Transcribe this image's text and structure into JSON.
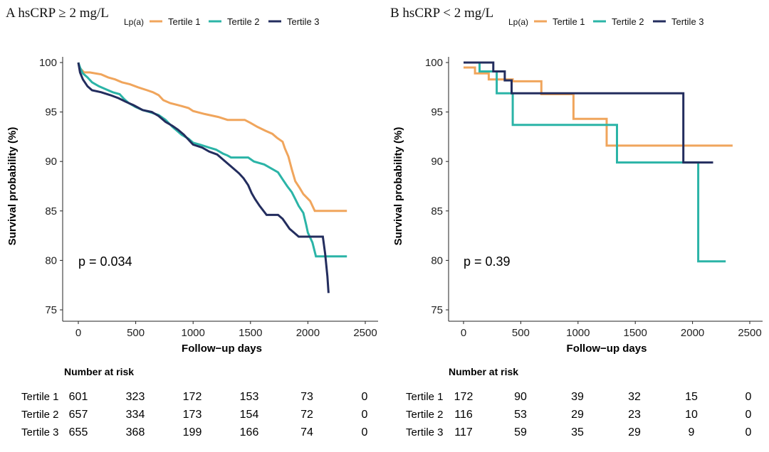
{
  "colors": {
    "tertile1": "#F0A55C",
    "tertile2": "#2BB4A7",
    "tertile3": "#232D5E",
    "axis": "#222222"
  },
  "legend": {
    "title": "Lp(a)",
    "items": [
      "Tertile 1",
      "Tertile 2",
      "Tertile 3"
    ]
  },
  "chart_data": [
    {
      "type": "line",
      "panel": "A",
      "title": "A  hsCRP ≥ 2 mg/L",
      "xlabel": "Follow−up days",
      "ylabel": "Survival probability (%)",
      "xlim": [
        0,
        2500
      ],
      "ylim": [
        75,
        100
      ],
      "xticks": [
        0,
        500,
        1000,
        1500,
        2000,
        2500
      ],
      "yticks": [
        75,
        80,
        85,
        90,
        95,
        100
      ],
      "annotation": "p = 0.034",
      "series": [
        {
          "name": "Tertile 1",
          "points": [
            [
              0,
              100
            ],
            [
              10,
              99.5
            ],
            [
              50,
              99.0
            ],
            [
              100,
              99.0
            ],
            [
              200,
              98.8
            ],
            [
              260,
              98.5
            ],
            [
              320,
              98.3
            ],
            [
              380,
              98.0
            ],
            [
              450,
              97.8
            ],
            [
              520,
              97.5
            ],
            [
              600,
              97.2
            ],
            [
              650,
              97.0
            ],
            [
              700,
              96.7
            ],
            [
              740,
              96.2
            ],
            [
              800,
              95.9
            ],
            [
              870,
              95.7
            ],
            [
              960,
              95.4
            ],
            [
              1000,
              95.1
            ],
            [
              1100,
              94.8
            ],
            [
              1220,
              94.5
            ],
            [
              1300,
              94.2
            ],
            [
              1450,
              94.2
            ],
            [
              1500,
              93.9
            ],
            [
              1560,
              93.5
            ],
            [
              1630,
              93.1
            ],
            [
              1690,
              92.8
            ],
            [
              1730,
              92.4
            ],
            [
              1780,
              92.0
            ],
            [
              1800,
              91.3
            ],
            [
              1830,
              90.5
            ],
            [
              1860,
              89.2
            ],
            [
              1890,
              88.0
            ],
            [
              1930,
              87.3
            ],
            [
              1960,
              86.7
            ],
            [
              2020,
              86.0
            ],
            [
              2060,
              85.0
            ],
            [
              2340,
              85.0
            ]
          ]
        },
        {
          "name": "Tertile 2",
          "points": [
            [
              0,
              100
            ],
            [
              15,
              99.5
            ],
            [
              40,
              98.9
            ],
            [
              80,
              98.5
            ],
            [
              120,
              98.0
            ],
            [
              180,
              97.6
            ],
            [
              240,
              97.3
            ],
            [
              300,
              97.0
            ],
            [
              360,
              96.8
            ],
            [
              400,
              96.3
            ],
            [
              440,
              95.9
            ],
            [
              500,
              95.5
            ],
            [
              560,
              95.2
            ],
            [
              620,
              95.0
            ],
            [
              700,
              94.7
            ],
            [
              760,
              94.2
            ],
            [
              820,
              93.5
            ],
            [
              860,
              93.1
            ],
            [
              900,
              92.7
            ],
            [
              960,
              92.3
            ],
            [
              1000,
              91.9
            ],
            [
              1060,
              91.7
            ],
            [
              1140,
              91.4
            ],
            [
              1200,
              91.2
            ],
            [
              1260,
              90.8
            ],
            [
              1300,
              90.6
            ],
            [
              1330,
              90.4
            ],
            [
              1480,
              90.4
            ],
            [
              1530,
              90.0
            ],
            [
              1620,
              89.7
            ],
            [
              1680,
              89.3
            ],
            [
              1740,
              88.9
            ],
            [
              1780,
              88.2
            ],
            [
              1820,
              87.5
            ],
            [
              1860,
              86.9
            ],
            [
              1890,
              86.2
            ],
            [
              1920,
              85.5
            ],
            [
              1960,
              84.8
            ],
            [
              1985,
              83.6
            ],
            [
              2000,
              82.8
            ],
            [
              2040,
              81.8
            ],
            [
              2070,
              80.4
            ],
            [
              2340,
              80.4
            ]
          ]
        },
        {
          "name": "Tertile 3",
          "points": [
            [
              0,
              100
            ],
            [
              15,
              99.0
            ],
            [
              40,
              98.3
            ],
            [
              80,
              97.6
            ],
            [
              120,
              97.2
            ],
            [
              200,
              97.0
            ],
            [
              280,
              96.7
            ],
            [
              350,
              96.4
            ],
            [
              420,
              96.0
            ],
            [
              480,
              95.7
            ],
            [
              560,
              95.2
            ],
            [
              640,
              95.0
            ],
            [
              700,
              94.6
            ],
            [
              760,
              94.0
            ],
            [
              820,
              93.6
            ],
            [
              870,
              93.2
            ],
            [
              920,
              92.7
            ],
            [
              960,
              92.2
            ],
            [
              1000,
              91.7
            ],
            [
              1080,
              91.4
            ],
            [
              1140,
              91.0
            ],
            [
              1210,
              90.7
            ],
            [
              1250,
              90.3
            ],
            [
              1300,
              89.8
            ],
            [
              1350,
              89.3
            ],
            [
              1400,
              88.8
            ],
            [
              1440,
              88.3
            ],
            [
              1480,
              87.6
            ],
            [
              1510,
              86.8
            ],
            [
              1540,
              86.2
            ],
            [
              1580,
              85.5
            ],
            [
              1640,
              84.6
            ],
            [
              1740,
              84.6
            ],
            [
              1780,
              84.2
            ],
            [
              1810,
              83.7
            ],
            [
              1840,
              83.2
            ],
            [
              1870,
              82.9
            ],
            [
              1920,
              82.4
            ],
            [
              2130,
              82.4
            ],
            [
              2150,
              80.7
            ],
            [
              2170,
              78.4
            ],
            [
              2180,
              76.7
            ]
          ]
        }
      ]
    },
    {
      "type": "line",
      "panel": "B",
      "title": "B  hsCRP < 2 mg/L",
      "xlabel": "Follow−up days",
      "ylabel": "Survival probability (%)",
      "xlim": [
        0,
        2500
      ],
      "ylim": [
        75,
        100
      ],
      "xticks": [
        0,
        500,
        1000,
        1500,
        2000,
        2500
      ],
      "yticks": [
        75,
        80,
        85,
        90,
        95,
        100
      ],
      "annotation": "p = 0.39",
      "series": [
        {
          "name": "Tertile 1",
          "points": [
            [
              0,
              99.5
            ],
            [
              100,
              99.5
            ],
            [
              100,
              98.9
            ],
            [
              220,
              98.9
            ],
            [
              220,
              98.3
            ],
            [
              430,
              98.3
            ],
            [
              430,
              98.1
            ],
            [
              680,
              98.1
            ],
            [
              680,
              96.8
            ],
            [
              960,
              96.8
            ],
            [
              960,
              94.3
            ],
            [
              1250,
              94.3
            ],
            [
              1250,
              91.6
            ],
            [
              2350,
              91.6
            ]
          ]
        },
        {
          "name": "Tertile 2",
          "points": [
            [
              0,
              100
            ],
            [
              140,
              100
            ],
            [
              140,
              99.1
            ],
            [
              290,
              99.1
            ],
            [
              290,
              96.9
            ],
            [
              430,
              96.9
            ],
            [
              430,
              93.7
            ],
            [
              1340,
              93.7
            ],
            [
              1340,
              89.9
            ],
            [
              2050,
              89.9
            ],
            [
              2050,
              79.9
            ],
            [
              2290,
              79.9
            ]
          ]
        },
        {
          "name": "Tertile 3",
          "points": [
            [
              0,
              100
            ],
            [
              260,
              100
            ],
            [
              260,
              99.1
            ],
            [
              360,
              99.1
            ],
            [
              360,
              98.2
            ],
            [
              420,
              98.2
            ],
            [
              420,
              96.9
            ],
            [
              1920,
              96.9
            ],
            [
              1920,
              89.9
            ],
            [
              2180,
              89.9
            ]
          ]
        }
      ]
    }
  ],
  "risk_tables": [
    {
      "header": "Number at risk",
      "rows": [
        {
          "label": "Tertile 1",
          "values": [
            "601",
            "323",
            "172",
            "153",
            "73",
            "0"
          ]
        },
        {
          "label": "Tertile 2",
          "values": [
            "657",
            "334",
            "173",
            "154",
            "72",
            "0"
          ]
        },
        {
          "label": "Tertile 3",
          "values": [
            "655",
            "368",
            "199",
            "166",
            "74",
            "0"
          ]
        }
      ]
    },
    {
      "header": "Number at risk",
      "rows": [
        {
          "label": "Tertile 1",
          "values": [
            "172",
            "90",
            "39",
            "32",
            "15",
            "0"
          ]
        },
        {
          "label": "Tertile 2",
          "values": [
            "116",
            "53",
            "29",
            "23",
            "10",
            "0"
          ]
        },
        {
          "label": "Tertile 3",
          "values": [
            "117",
            "59",
            "35",
            "29",
            "9",
            "0"
          ]
        }
      ]
    }
  ]
}
